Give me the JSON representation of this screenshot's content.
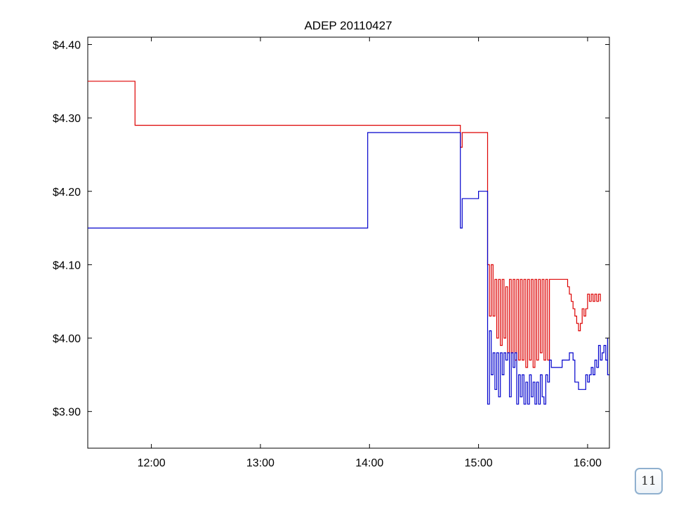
{
  "slide": {
    "page_number": "11"
  },
  "colors": {
    "ask_series": "#dd0000",
    "bid_series": "#0000cc",
    "frame": "#000000",
    "badge_border": "#8fb0cf"
  },
  "chart_data": {
    "type": "line",
    "title": "ADEP 20110427",
    "xlabel": "",
    "ylabel": "",
    "x_unit": "time (HH:MM)",
    "xlim": [
      "11:25",
      "16:12"
    ],
    "ylim": [
      3.85,
      4.41
    ],
    "x_ticks": [
      "12:00",
      "13:00",
      "14:00",
      "15:00",
      "16:00"
    ],
    "y_ticks": [
      {
        "value": 4.4,
        "label": "$4.40"
      },
      {
        "value": 4.3,
        "label": "$4.30"
      },
      {
        "value": 4.2,
        "label": "$4.20"
      },
      {
        "value": 4.1,
        "label": "$4.10"
      },
      {
        "value": 4.0,
        "label": "$4.00"
      },
      {
        "value": 3.9,
        "label": "$3.90"
      }
    ],
    "grid": false,
    "legend": "none",
    "step": true,
    "series": [
      {
        "color": "#dd0000",
        "points": [
          [
            "11:25",
            4.35
          ],
          [
            "11:51",
            4.35
          ],
          [
            "11:51",
            4.29
          ],
          [
            "14:50",
            4.29
          ],
          [
            "14:50",
            4.26
          ],
          [
            "14:51",
            4.28
          ],
          [
            "15:05",
            4.28
          ],
          [
            "15:05",
            4.1
          ],
          [
            "15:06",
            4.03
          ],
          [
            "15:07",
            4.1
          ],
          [
            "15:08",
            4.03
          ],
          [
            "15:09",
            4.08
          ],
          [
            "15:10",
            4.0
          ],
          [
            "15:11",
            4.08
          ],
          [
            "15:12",
            3.99
          ],
          [
            "15:13",
            4.08
          ],
          [
            "15:14",
            4.0
          ],
          [
            "15:15",
            4.07
          ],
          [
            "15:16",
            3.98
          ],
          [
            "15:17",
            4.08
          ],
          [
            "15:18",
            3.98
          ],
          [
            "15:19",
            4.08
          ],
          [
            "15:20",
            3.97
          ],
          [
            "15:21",
            4.08
          ],
          [
            "15:22",
            3.97
          ],
          [
            "15:23",
            4.08
          ],
          [
            "15:24",
            3.97
          ],
          [
            "15:25",
            4.08
          ],
          [
            "15:26",
            3.96
          ],
          [
            "15:27",
            4.08
          ],
          [
            "15:28",
            3.97
          ],
          [
            "15:29",
            4.08
          ],
          [
            "15:30",
            3.96
          ],
          [
            "15:31",
            4.08
          ],
          [
            "15:32",
            3.97
          ],
          [
            "15:33",
            4.08
          ],
          [
            "15:34",
            3.98
          ],
          [
            "15:35",
            4.08
          ],
          [
            "15:36",
            3.97
          ],
          [
            "15:37",
            4.08
          ],
          [
            "15:38",
            3.97
          ],
          [
            "15:39",
            4.08
          ],
          [
            "15:40",
            4.08
          ],
          [
            "15:48",
            4.08
          ],
          [
            "15:49",
            4.07
          ],
          [
            "15:50",
            4.06
          ],
          [
            "15:51",
            4.05
          ],
          [
            "15:52",
            4.04
          ],
          [
            "15:53",
            4.03
          ],
          [
            "15:54",
            4.02
          ],
          [
            "15:55",
            4.01
          ],
          [
            "15:56",
            4.02
          ],
          [
            "15:57",
            4.04
          ],
          [
            "15:58",
            4.03
          ],
          [
            "15:59",
            4.04
          ],
          [
            "16:00",
            4.06
          ],
          [
            "16:01",
            4.05
          ],
          [
            "16:02",
            4.06
          ],
          [
            "16:03",
            4.05
          ],
          [
            "16:04",
            4.06
          ],
          [
            "16:05",
            4.05
          ],
          [
            "16:06",
            4.06
          ],
          [
            "16:07",
            4.05
          ]
        ]
      },
      {
        "color": "#0000cc",
        "points": [
          [
            "11:25",
            4.15
          ],
          [
            "13:59",
            4.15
          ],
          [
            "13:59",
            4.28
          ],
          [
            "14:50",
            4.28
          ],
          [
            "14:50",
            4.15
          ],
          [
            "14:51",
            4.19
          ],
          [
            "15:00",
            4.19
          ],
          [
            "15:00",
            4.2
          ],
          [
            "15:05",
            4.2
          ],
          [
            "15:05",
            3.91
          ],
          [
            "15:06",
            4.01
          ],
          [
            "15:07",
            3.95
          ],
          [
            "15:08",
            3.98
          ],
          [
            "15:09",
            3.93
          ],
          [
            "15:10",
            3.98
          ],
          [
            "15:11",
            3.92
          ],
          [
            "15:12",
            3.98
          ],
          [
            "15:13",
            3.95
          ],
          [
            "15:14",
            3.98
          ],
          [
            "15:15",
            3.97
          ],
          [
            "15:16",
            3.98
          ],
          [
            "15:17",
            3.92
          ],
          [
            "15:18",
            3.98
          ],
          [
            "15:19",
            3.96
          ],
          [
            "15:20",
            3.98
          ],
          [
            "15:21",
            3.91
          ],
          [
            "15:22",
            3.95
          ],
          [
            "15:23",
            3.92
          ],
          [
            "15:24",
            3.95
          ],
          [
            "15:25",
            3.91
          ],
          [
            "15:26",
            3.94
          ],
          [
            "15:27",
            3.91
          ],
          [
            "15:28",
            3.95
          ],
          [
            "15:29",
            3.92
          ],
          [
            "15:30",
            3.94
          ],
          [
            "15:31",
            3.91
          ],
          [
            "15:32",
            3.94
          ],
          [
            "15:33",
            3.91
          ],
          [
            "15:34",
            3.95
          ],
          [
            "15:35",
            3.92
          ],
          [
            "15:36",
            3.91
          ],
          [
            "15:37",
            3.95
          ],
          [
            "15:38",
            3.94
          ],
          [
            "15:39",
            3.97
          ],
          [
            "15:40",
            3.96
          ],
          [
            "15:45",
            3.96
          ],
          [
            "15:46",
            3.97
          ],
          [
            "15:48",
            3.97
          ],
          [
            "15:50",
            3.98
          ],
          [
            "15:52",
            3.97
          ],
          [
            "15:53",
            3.94
          ],
          [
            "15:55",
            3.93
          ],
          [
            "15:58",
            3.93
          ],
          [
            "15:59",
            3.95
          ],
          [
            "16:00",
            3.94
          ],
          [
            "16:01",
            3.95
          ],
          [
            "16:02",
            3.96
          ],
          [
            "16:03",
            3.95
          ],
          [
            "16:04",
            3.97
          ],
          [
            "16:05",
            3.96
          ],
          [
            "16:06",
            3.99
          ],
          [
            "16:07",
            3.97
          ],
          [
            "16:08",
            3.98
          ],
          [
            "16:09",
            3.99
          ],
          [
            "16:10",
            3.97
          ],
          [
            "16:11",
            4.0
          ],
          [
            "16:11",
            3.95
          ],
          [
            "16:12",
            3.95
          ]
        ]
      }
    ]
  }
}
